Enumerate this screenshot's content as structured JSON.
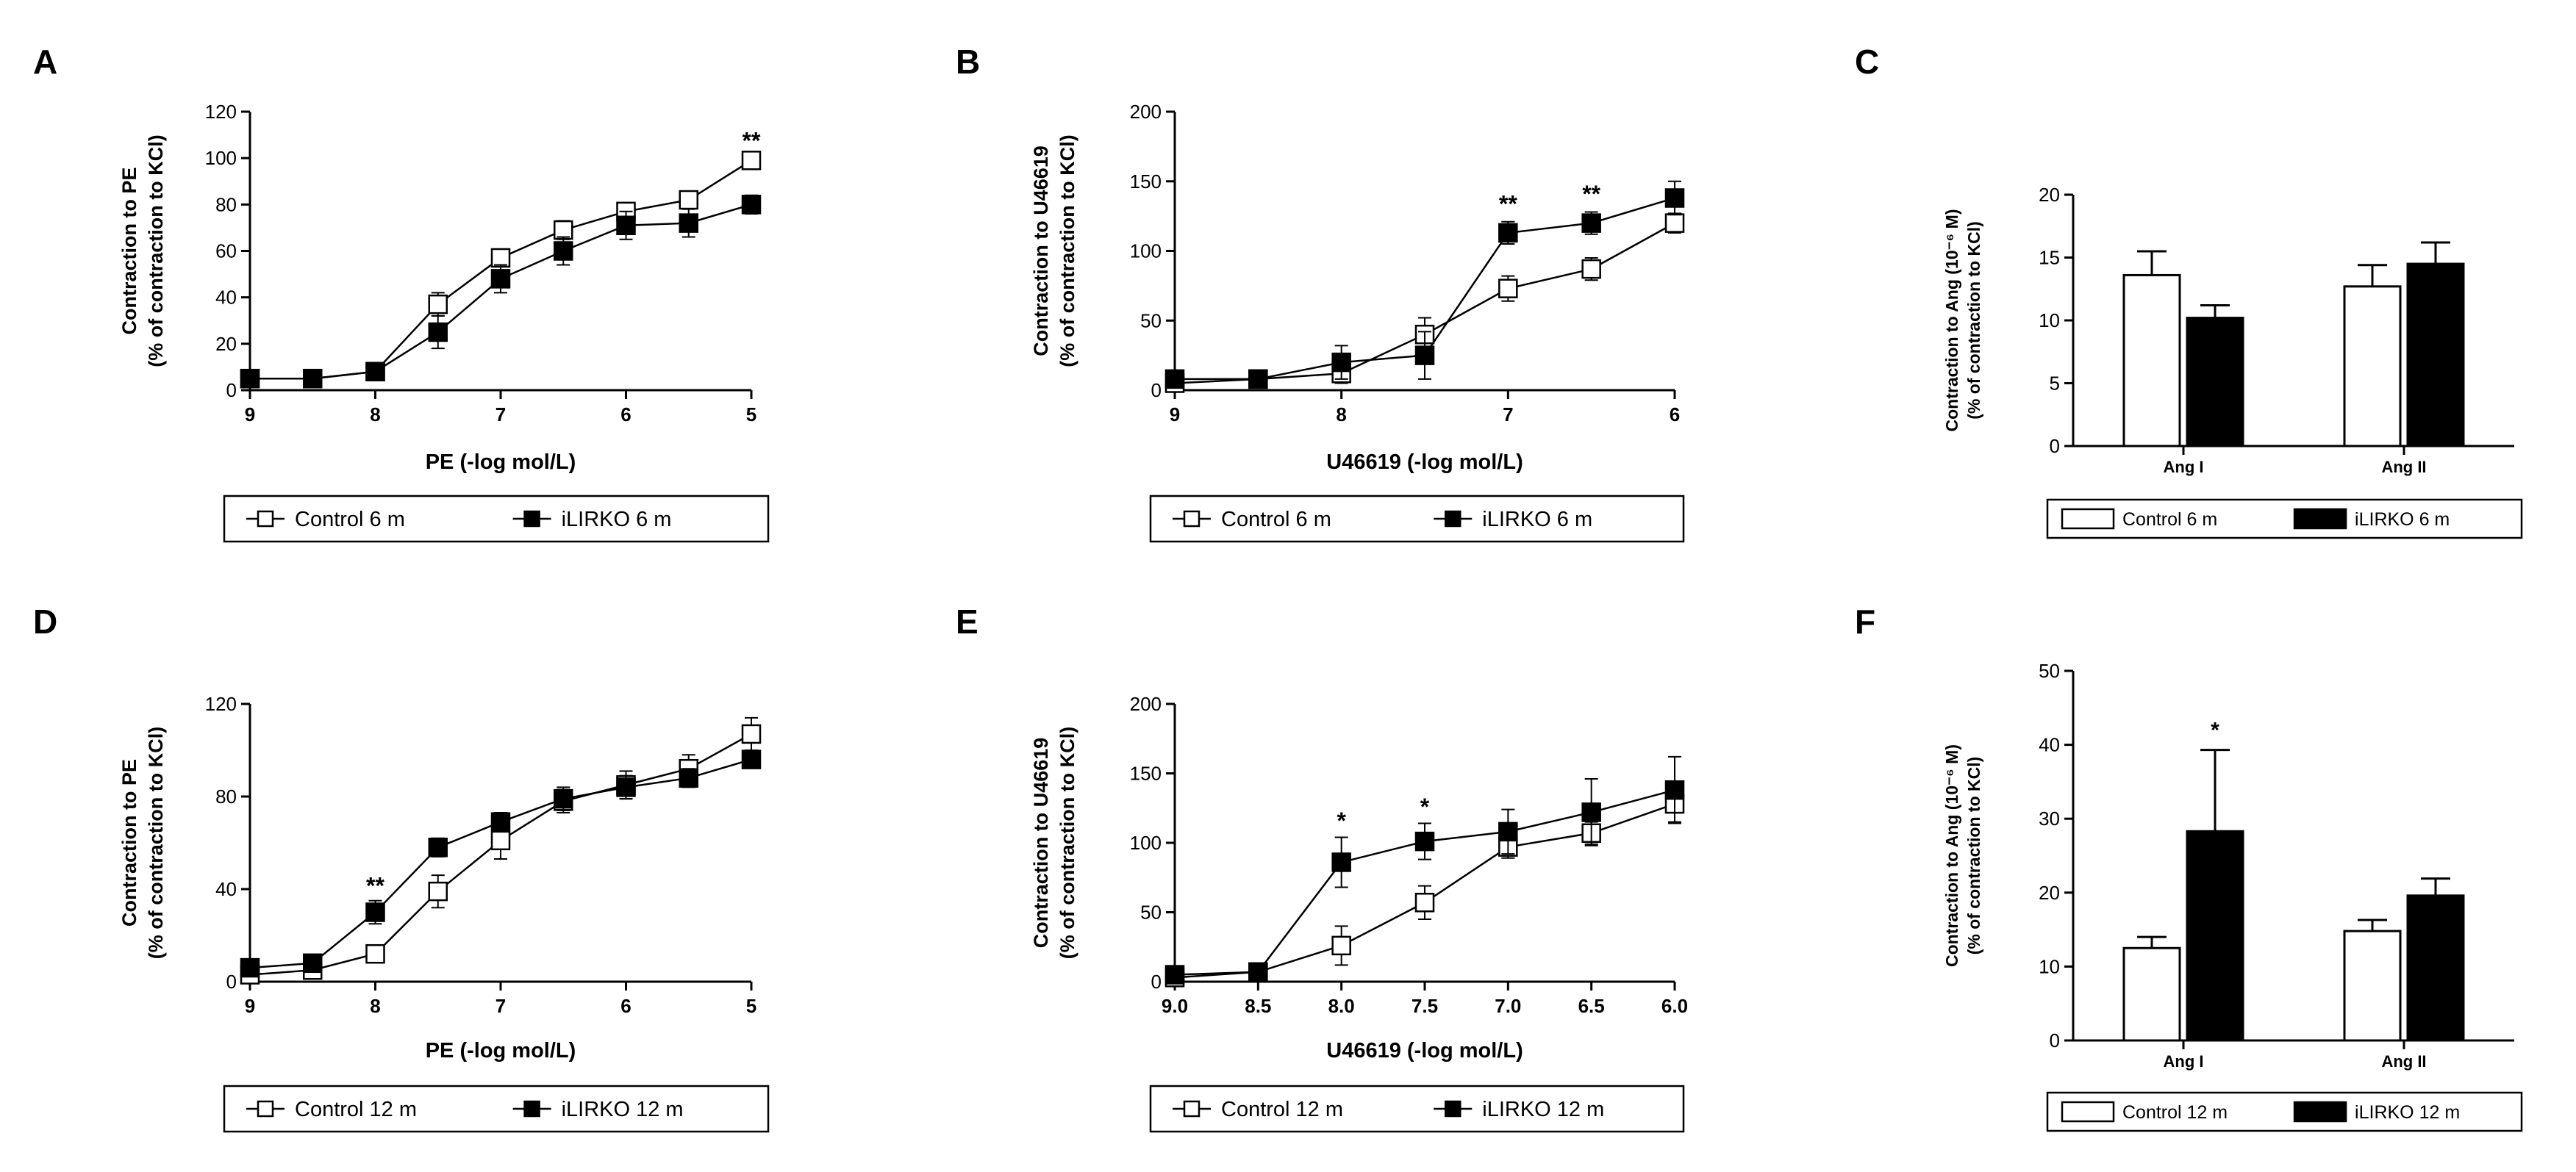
{
  "chart_data": [
    {
      "panel": "A",
      "type": "line",
      "title": "",
      "xlabel": "PE (-log mol/L)",
      "ylabel": [
        "Contraction to PE",
        "(% of contraction to KCl)"
      ],
      "xlim": [
        9,
        5
      ],
      "ylim": [
        0,
        120
      ],
      "xticks": [
        9,
        8,
        7,
        6,
        5
      ],
      "xtick_labels": [
        "9",
        "8",
        "7",
        "6",
        "5"
      ],
      "yticks": [
        0,
        20,
        40,
        60,
        80,
        100,
        120
      ],
      "ytick_labels": [
        "0",
        "20",
        "40",
        "60",
        "80",
        "100",
        "120"
      ],
      "grid": false,
      "legend_position": "bottom",
      "x": [
        9,
        8.5,
        8,
        7.5,
        7,
        6.5,
        6,
        5.5,
        5
      ],
      "series": [
        {
          "name": "Control 6 m",
          "marker": "open-square",
          "values": [
            5,
            5,
            8,
            37,
            57,
            69,
            77,
            82,
            99
          ],
          "errors": [
            2,
            2,
            2,
            5,
            3,
            4,
            3,
            3,
            3
          ]
        },
        {
          "name": "iLIRKO 6 m",
          "marker": "filled-square",
          "values": [
            5,
            5,
            8,
            25,
            48,
            60,
            71,
            72,
            80
          ],
          "errors": [
            2,
            2,
            2,
            7,
            6,
            6,
            6,
            6,
            4
          ]
        }
      ],
      "annotations": [
        {
          "text": "**",
          "x": 5,
          "y": 104
        }
      ]
    },
    {
      "panel": "B",
      "type": "line",
      "title": "",
      "xlabel": "U46619 (-log mol/L)",
      "ylabel": [
        "Contraction to U46619",
        "(% of contraction to KCl)"
      ],
      "xlim": [
        9,
        6
      ],
      "ylim": [
        0,
        200
      ],
      "xticks": [
        9,
        8,
        7,
        6
      ],
      "xtick_labels": [
        "9",
        "8",
        "7",
        "6"
      ],
      "yticks": [
        0,
        50,
        100,
        150,
        200
      ],
      "ytick_labels": [
        "0",
        "50",
        "100",
        "150",
        "200"
      ],
      "grid": false,
      "legend_position": "bottom",
      "x": [
        9,
        8.5,
        8,
        7.5,
        7,
        6.5,
        6
      ],
      "series": [
        {
          "name": "Control 6 m",
          "marker": "open-square",
          "values": [
            5,
            8,
            12,
            40,
            73,
            87,
            120
          ],
          "errors": [
            4,
            3,
            7,
            12,
            9,
            8,
            7
          ]
        },
        {
          "name": "iLIRKO 6 m",
          "marker": "filled-square",
          "values": [
            8,
            8,
            20,
            25,
            113,
            120,
            138
          ],
          "errors": [
            4,
            3,
            12,
            17,
            8,
            8,
            12
          ]
        }
      ],
      "annotations": [
        {
          "text": "**",
          "x": 7,
          "y": 128
        },
        {
          "text": "**",
          "x": 6.5,
          "y": 135
        }
      ]
    },
    {
      "panel": "C",
      "type": "bar",
      "title": "",
      "xlabel": "",
      "ylabel": [
        "Contraction to Ang (10⁻⁶ M)",
        "(% of contraction to KCl)"
      ],
      "ylim": [
        0,
        20
      ],
      "yticks": [
        0,
        5,
        10,
        15,
        20
      ],
      "ytick_labels": [
        "0",
        "5",
        "10",
        "15",
        "20"
      ],
      "grid": false,
      "legend_position": "bottom",
      "categories": [
        "Ang I",
        "Ang II"
      ],
      "series": [
        {
          "name": "Control 6 m",
          "fill": "#ffffff",
          "values": [
            13.6,
            12.7
          ],
          "errors": [
            1.9,
            1.7
          ]
        },
        {
          "name": "iLIRKO 6 m",
          "fill": "#000000",
          "values": [
            10.2,
            14.5
          ],
          "errors": [
            1.0,
            1.7
          ]
        }
      ],
      "annotations": []
    },
    {
      "panel": "D",
      "type": "line",
      "title": "",
      "xlabel": "PE (-log mol/L)",
      "ylabel": [
        "Contraction to PE",
        "(% of contraction to KCl)"
      ],
      "xlim": [
        9,
        5
      ],
      "ylim": [
        0,
        120
      ],
      "xticks": [
        9,
        8,
        7,
        6,
        5
      ],
      "xtick_labels": [
        "9",
        "8",
        "7",
        "6",
        "5"
      ],
      "yticks": [
        0,
        40,
        80,
        120
      ],
      "ytick_labels": [
        "0",
        "40",
        "80",
        "120"
      ],
      "grid": false,
      "legend_position": "bottom",
      "x": [
        9,
        8.5,
        8,
        7.5,
        7,
        6.5,
        6,
        5.5,
        5
      ],
      "series": [
        {
          "name": "Control 12 m",
          "marker": "open-square",
          "values": [
            3,
            5,
            12,
            39,
            61,
            78,
            85,
            92,
            107
          ],
          "errors": [
            2,
            2,
            3,
            7,
            8,
            5,
            6,
            6,
            7
          ]
        },
        {
          "name": "iLIRKO 12 m",
          "marker": "filled-square",
          "values": [
            6,
            8,
            30,
            58,
            69,
            79,
            84,
            88,
            96
          ],
          "errors": [
            2,
            2,
            5,
            4,
            4,
            5,
            5,
            4,
            3
          ]
        }
      ],
      "annotations": [
        {
          "text": "**",
          "x": 8,
          "y": 38
        }
      ]
    },
    {
      "panel": "E",
      "type": "line",
      "title": "",
      "xlabel": "U46619 (-log mol/L)",
      "ylabel": [
        "Contraction to U46619",
        "(% of contraction to KCl)"
      ],
      "xlim": [
        9,
        6
      ],
      "ylim": [
        0,
        200
      ],
      "xticks": [
        9,
        8.5,
        8,
        7.5,
        7,
        6.5,
        6
      ],
      "xtick_labels": [
        "9.0",
        "8.5",
        "8.0",
        "7.5",
        "7.0",
        "6.5",
        "6.0"
      ],
      "yticks": [
        0,
        50,
        100,
        150,
        200
      ],
      "ytick_labels": [
        "0",
        "50",
        "100",
        "150",
        "200"
      ],
      "grid": false,
      "legend_position": "bottom",
      "x": [
        9,
        8.5,
        8,
        7.5,
        7,
        6.5,
        6
      ],
      "series": [
        {
          "name": "Control 12 m",
          "marker": "open-square",
          "values": [
            3,
            7,
            26,
            57,
            97,
            107,
            128
          ],
          "errors": [
            3,
            3,
            14,
            12,
            8,
            8,
            13
          ]
        },
        {
          "name": "iLIRKO 12 m",
          "marker": "filled-square",
          "values": [
            5,
            7,
            86,
            101,
            108,
            122,
            138
          ],
          "errors": [
            3,
            3,
            18,
            13,
            16,
            24,
            24
          ]
        }
      ],
      "annotations": [
        {
          "text": "*",
          "x": 8,
          "y": 110
        },
        {
          "text": "*",
          "x": 7.5,
          "y": 120
        }
      ]
    },
    {
      "panel": "F",
      "type": "bar",
      "title": "",
      "xlabel": "",
      "ylabel": [
        "Contraction to Ang (10⁻⁶ M)",
        "(% of contraction to KCl)"
      ],
      "ylim": [
        0,
        50
      ],
      "yticks": [
        0,
        10,
        20,
        30,
        40,
        50
      ],
      "ytick_labels": [
        "0",
        "10",
        "20",
        "30",
        "40",
        "50"
      ],
      "grid": false,
      "legend_position": "bottom",
      "categories": [
        "Ang I",
        "Ang II"
      ],
      "series": [
        {
          "name": "Control 12 m",
          "fill": "#ffffff",
          "values": [
            12.5,
            14.8
          ],
          "errors": [
            1.5,
            1.5
          ]
        },
        {
          "name": "iLIRKO 12 m",
          "fill": "#000000",
          "values": [
            28.3,
            19.6
          ],
          "errors": [
            11.0,
            2.3
          ]
        }
      ],
      "annotations": [
        {
          "text": "*",
          "category": 0,
          "series": 1,
          "y": 41
        }
      ]
    }
  ]
}
